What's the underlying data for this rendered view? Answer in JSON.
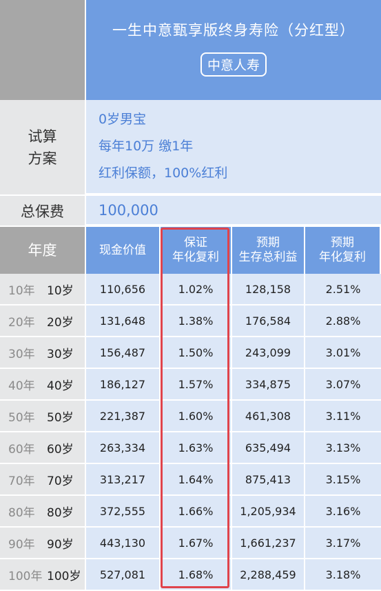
{
  "product": {
    "title": "一生中意甄享版终身寿险（分红型）",
    "company": "中意人寿"
  },
  "plan": {
    "label_line1": "试算",
    "label_line2": "方案",
    "lines": [
      "0岁男宝",
      "每年10万 缴1年",
      "红利保额，100%红利"
    ]
  },
  "premium": {
    "label": "总保费",
    "value": "100,000"
  },
  "table": {
    "headers": {
      "year": "年度",
      "cash_value": "现金价值",
      "guaranteed_line1": "保证",
      "guaranteed_line2": "年化复利",
      "expected_total_line1": "预期",
      "expected_total_line2": "生存总利益",
      "expected_rate_line1": "预期",
      "expected_rate_line2": "年化复利"
    },
    "rows": [
      {
        "year": "10年",
        "age": "10岁",
        "cash": "110,656",
        "guar": "1.02%",
        "total": "128,158",
        "rate": "2.51%"
      },
      {
        "year": "20年",
        "age": "20岁",
        "cash": "131,648",
        "guar": "1.38%",
        "total": "176,584",
        "rate": "2.88%"
      },
      {
        "year": "30年",
        "age": "30岁",
        "cash": "156,487",
        "guar": "1.50%",
        "total": "243,099",
        "rate": "3.01%"
      },
      {
        "year": "40年",
        "age": "40岁",
        "cash": "186,127",
        "guar": "1.57%",
        "total": "334,875",
        "rate": "3.07%"
      },
      {
        "year": "50年",
        "age": "50岁",
        "cash": "221,387",
        "guar": "1.60%",
        "total": "461,308",
        "rate": "3.11%"
      },
      {
        "year": "60年",
        "age": "60岁",
        "cash": "263,334",
        "guar": "1.63%",
        "total": "635,494",
        "rate": "3.13%"
      },
      {
        "year": "70年",
        "age": "70岁",
        "cash": "313,217",
        "guar": "1.64%",
        "total": "875,413",
        "rate": "3.15%"
      },
      {
        "year": "80年",
        "age": "80岁",
        "cash": "372,555",
        "guar": "1.66%",
        "total": "1,205,934",
        "rate": "3.16%"
      },
      {
        "year": "90年",
        "age": "90岁",
        "cash": "443,130",
        "guar": "1.67%",
        "total": "1,661,237",
        "rate": "3.17%"
      },
      {
        "year": "100年",
        "age": "100岁",
        "cash": "527,081",
        "guar": "1.68%",
        "total": "2,288,459",
        "rate": "3.18%"
      }
    ]
  },
  "colors": {
    "header_blue": "#6f9de1",
    "cell_blue": "#dce7f7",
    "label_gray": "#e6e7e8",
    "header_gray": "#a7a7a7",
    "text_blue": "#4b7fd6",
    "highlight_red": "#e0434b"
  }
}
